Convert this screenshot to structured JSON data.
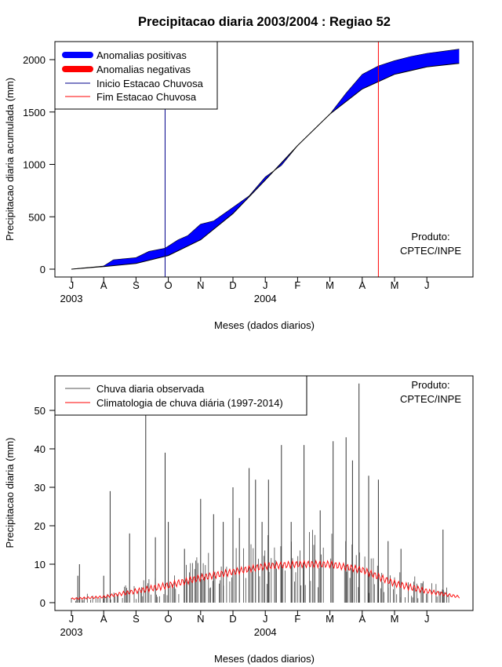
{
  "chart_data": [
    {
      "type": "area",
      "title": "Precipitacao diaria 2003/2004 : Regiao 52",
      "ylabel": "Precipitacao diaria acumulada (mm)",
      "xlabel": "Meses (dados diarios)",
      "ylim": [
        0,
        2100
      ],
      "yticks": [
        0,
        500,
        1000,
        1500,
        2000
      ],
      "month_ticks": [
        "J",
        "A",
        "S",
        "O",
        "N",
        "D",
        "J",
        "F",
        "M",
        "A",
        "M",
        "J"
      ],
      "year_labels": [
        "2003",
        "2004"
      ],
      "legend": [
        {
          "label": "Anomalias positivas",
          "color": "#0000ff",
          "kind": "thick"
        },
        {
          "label": "Anomalias negativas",
          "color": "#ff0000",
          "kind": "thick"
        },
        {
          "label": "Inicio Estacao Chuvosa",
          "color": "#00008b",
          "kind": "thin"
        },
        {
          "label": "Fim Estacao Chuvosa",
          "color": "#ff0000",
          "kind": "thin"
        }
      ],
      "series": [
        {
          "name": "Climatologia acumulada",
          "x_month": [
            0,
            1,
            2,
            3,
            4,
            5,
            6,
            7,
            8,
            9,
            10,
            11,
            12
          ],
          "values": [
            0,
            25,
            55,
            130,
            280,
            530,
            850,
            1180,
            1480,
            1720,
            1860,
            1930,
            1965
          ]
        },
        {
          "name": "Observada acumulada",
          "x_month": [
            0,
            0.3,
            1,
            1.3,
            2,
            2.4,
            2.9,
            3.3,
            3.6,
            4,
            4.4,
            5,
            5.5,
            6,
            6.5,
            7,
            7.5,
            8,
            8.5,
            9,
            9.5,
            10,
            10.5,
            11,
            11.5,
            12
          ],
          "values": [
            0,
            10,
            30,
            90,
            110,
            170,
            200,
            280,
            320,
            430,
            460,
            590,
            700,
            880,
            990,
            1180,
            1330,
            1480,
            1680,
            1860,
            1940,
            1990,
            2030,
            2060,
            2080,
            2100
          ]
        }
      ],
      "onset_month": 2.9,
      "end_month": 9.5,
      "annotation": [
        "Produto:",
        "CPTEC/INPE"
      ]
    },
    {
      "type": "bar",
      "ylabel": "Precipitacao diaria (mm)",
      "xlabel": "Meses (dados diarios)",
      "ylim": [
        0,
        58
      ],
      "yticks": [
        0,
        10,
        20,
        30,
        40,
        50
      ],
      "month_ticks": [
        "J",
        "A",
        "S",
        "O",
        "N",
        "D",
        "J",
        "F",
        "M",
        "A",
        "M",
        "J"
      ],
      "year_labels": [
        "2003",
        "2004"
      ],
      "legend": [
        {
          "label": "Chuva diaria observada",
          "color": "#555555"
        },
        {
          "label": "Climatologia de chuva diária (1997-2014)",
          "color": "#ff0000"
        }
      ],
      "series": [
        {
          "name": "Chuva diaria observada (picos principais)",
          "x_month": [
            0.2,
            0.25,
            1.0,
            1.2,
            1.8,
            2.3,
            2.6,
            2.9,
            3.0,
            3.5,
            4.0,
            4.4,
            4.7,
            5.0,
            5.2,
            5.5,
            5.7,
            5.9,
            6.1,
            6.5,
            6.8,
            7.2,
            7.7,
            8.1,
            8.5,
            8.7,
            8.9,
            9.2,
            9.5,
            9.8,
            10.2,
            11.5
          ],
          "values": [
            7,
            10,
            7,
            29,
            18,
            49,
            17,
            39,
            21,
            14,
            27,
            23,
            21,
            30,
            22,
            35,
            32,
            21,
            32,
            41,
            21,
            41,
            24,
            42,
            43,
            37,
            57,
            33,
            32,
            16,
            14,
            19
          ]
        },
        {
          "name": "Climatologia de chuva diária (1997-2014)",
          "x_month": [
            0,
            1,
            2,
            3,
            4,
            5,
            6,
            7,
            8,
            9,
            10,
            11,
            12
          ],
          "values": [
            1.0,
            1.5,
            3.0,
            4.5,
            6.5,
            8.0,
            9.5,
            10.0,
            10.0,
            8.5,
            5.0,
            3.0,
            1.5
          ]
        }
      ],
      "annotation": [
        "Produto:",
        "CPTEC/INPE"
      ]
    }
  ]
}
